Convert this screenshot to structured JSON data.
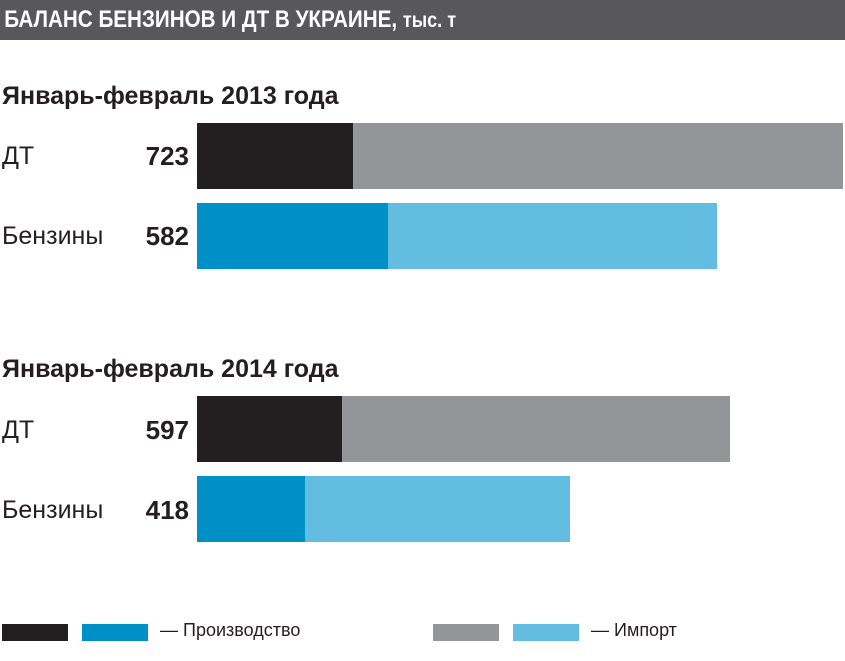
{
  "title": {
    "main": "БАЛАНС БЕНЗИНОВ И ДТ В УКРАИНЕ,",
    "unit": "тыс. т"
  },
  "chart_data": {
    "type": "bar",
    "orientation": "horizontal",
    "stacked": true,
    "groups": [
      {
        "title": "Январь-февраль 2013 года",
        "rows": [
          {
            "label": "ДТ",
            "total": "723",
            "production": 175,
            "import": 548,
            "colors": {
              "production": "#231f20",
              "import": "#939598"
            }
          },
          {
            "label": "Бензины",
            "total": "582",
            "production": 214,
            "import": 368,
            "colors": {
              "production": "#0090c8",
              "import": "#62bde0"
            }
          }
        ]
      },
      {
        "title": "Январь-февраль 2014 года",
        "rows": [
          {
            "label": "ДТ",
            "total": "597",
            "production": 162,
            "import": 435,
            "colors": {
              "production": "#231f20",
              "import": "#939598"
            }
          },
          {
            "label": "Бензины",
            "total": "418",
            "production": 121,
            "import": 297,
            "colors": {
              "production": "#0090c8",
              "import": "#62bde0"
            }
          }
        ]
      }
    ],
    "legend": {
      "position": "bottom",
      "items": [
        {
          "label": "— Производство",
          "colors": [
            "#231f20",
            "#0090c8"
          ]
        },
        {
          "label": "— Импорт",
          "colors": [
            "#939598",
            "#62bde0"
          ]
        }
      ]
    },
    "grid": false
  }
}
